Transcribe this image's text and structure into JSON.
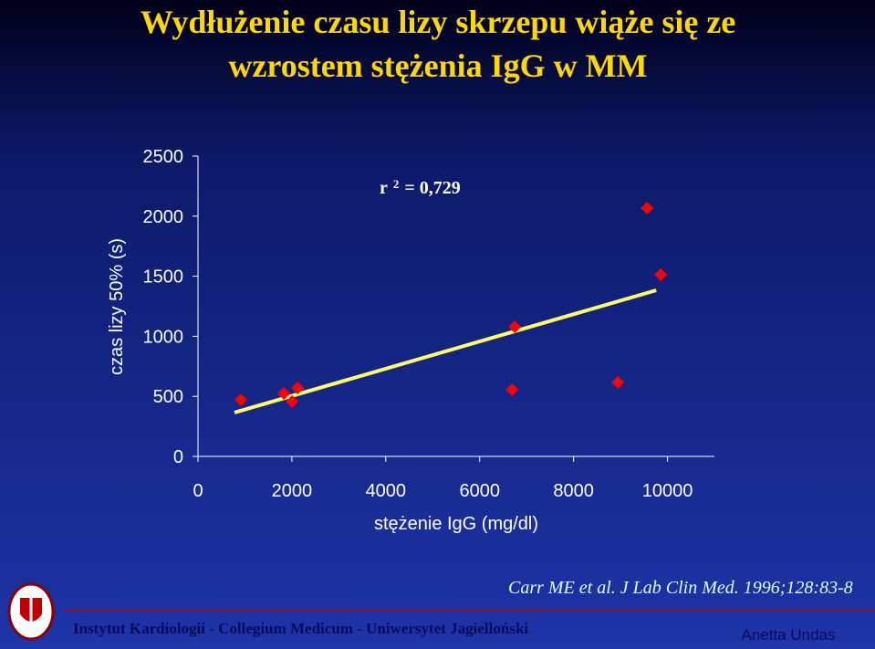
{
  "chart_data": {
    "type": "scatter",
    "title": [
      "Wydłużenie czasu lizy skrzepu wiąże się ze",
      "wzrostem stężenia IgG w MM"
    ],
    "x_label": "stężenie IgG (mg/dl)",
    "y_label": "czas lizy 50% (s)",
    "annotation": {
      "base": "r",
      "superscript": "2",
      "rest": "= 0,729"
    },
    "x": [
      914,
      1828,
      2003,
      2120,
      6747,
      6689,
      8944,
      9566,
      9858
    ],
    "values": [
      471,
      524,
      456,
      570,
      1079,
      555,
      616,
      2067,
      1512
    ],
    "color": "#ff0000",
    "trendline": {
      "x": [
        778,
        9761
      ],
      "y": [
        365,
        1383
      ],
      "color": "#ffff66"
    },
    "xlim": [
      0,
      11000
    ],
    "xticks": [
      0,
      2000,
      4000,
      6000,
      8000,
      10000
    ],
    "ylim": [
      0,
      2500
    ],
    "yticks": [
      0,
      500,
      1000,
      1500,
      2000,
      2500
    ]
  },
  "footer": {
    "citation": "Carr ME et al. J Lab Clin Med. 1996;128:83-8",
    "institution": "Instytut Kardiologii - Collegium Medicum - Uniwersytet Jagielloński",
    "author": "Anetta Undas"
  }
}
